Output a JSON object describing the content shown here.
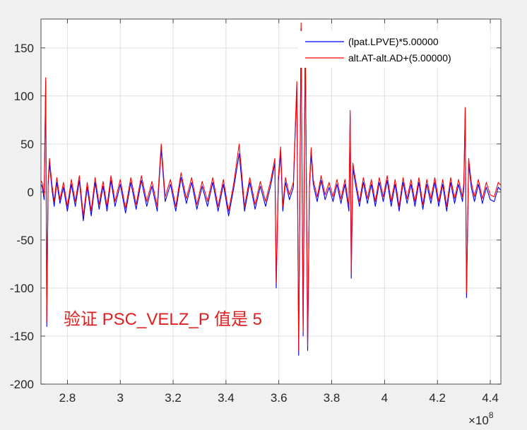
{
  "chart_data": {
    "type": "line",
    "title": "",
    "xlabel": "",
    "ylabel": "",
    "x_exponent_label": "×10",
    "x_exponent_power": "8",
    "xlim": [
      2.7,
      4.44
    ],
    "ylim": [
      -200,
      180
    ],
    "x_ticks": [
      2.8,
      3,
      3.2,
      3.4,
      3.6,
      3.8,
      4,
      4.2,
      4.4
    ],
    "x_tick_labels": [
      "2.8",
      "3",
      "3.2",
      "3.4",
      "3.6",
      "3.8",
      "4",
      "4.2",
      "4.4"
    ],
    "y_ticks": [
      150,
      100,
      50,
      0,
      -50,
      -100,
      -150,
      -200
    ],
    "y_tick_labels": [
      "150",
      "100",
      "50",
      "0",
      "-50",
      "-100",
      "-150",
      "-200"
    ],
    "grid": true,
    "legend_position": "top-right",
    "series": [
      {
        "name": "(lpat.LPVE)*5.00000",
        "color": "#0000ff",
        "x": [
          2.7,
          2.705,
          2.712,
          2.718,
          2.722,
          2.727,
          2.732,
          2.742,
          2.75,
          2.76,
          2.772,
          2.785,
          2.8,
          2.815,
          2.83,
          2.845,
          2.86,
          2.875,
          2.89,
          2.905,
          2.92,
          2.935,
          2.95,
          2.965,
          2.98,
          3.0,
          3.02,
          3.04,
          3.06,
          3.08,
          3.1,
          3.12,
          3.14,
          3.155,
          3.17,
          3.19,
          3.21,
          3.23,
          3.25,
          3.27,
          3.29,
          3.31,
          3.33,
          3.35,
          3.37,
          3.39,
          3.41,
          3.43,
          3.45,
          3.47,
          3.49,
          3.51,
          3.53,
          3.55,
          3.57,
          3.585,
          3.59,
          3.598,
          3.607,
          3.615,
          3.625,
          3.64,
          3.655,
          3.668,
          3.675,
          3.684,
          3.692,
          3.7,
          3.709,
          3.716,
          3.722,
          3.73,
          3.745,
          3.76,
          3.775,
          3.79,
          3.805,
          3.82,
          3.835,
          3.85,
          3.865,
          3.87,
          3.874,
          3.88,
          3.89,
          3.905,
          3.92,
          3.935,
          3.95,
          3.965,
          3.98,
          3.995,
          4.01,
          4.025,
          4.04,
          4.055,
          4.07,
          4.085,
          4.1,
          4.115,
          4.13,
          4.145,
          4.16,
          4.175,
          4.19,
          4.205,
          4.22,
          4.235,
          4.25,
          4.265,
          4.28,
          4.295,
          4.3,
          4.305,
          4.31,
          4.318,
          4.328,
          4.34,
          4.355,
          4.37,
          4.385,
          4.4,
          4.415,
          4.43,
          4.44
        ],
        "values": [
          8,
          5,
          -8,
          115,
          -140,
          6,
          30,
          2,
          -15,
          10,
          -12,
          5,
          -20,
          8,
          -15,
          12,
          -30,
          5,
          -25,
          10,
          -18,
          6,
          -20,
          12,
          -15,
          8,
          -22,
          10,
          -18,
          12,
          -15,
          6,
          -20,
          45,
          -10,
          8,
          -20,
          15,
          -12,
          10,
          -18,
          6,
          -15,
          10,
          -20,
          8,
          -25,
          5,
          40,
          -20,
          10,
          -18,
          6,
          -15,
          8,
          30,
          -100,
          10,
          40,
          -20,
          10,
          -8,
          5,
          110,
          -170,
          170,
          -150,
          160,
          -165,
          5,
          40,
          8,
          -10,
          12,
          -8,
          5,
          -10,
          8,
          -12,
          8,
          -20,
          80,
          -90,
          25,
          8,
          -15,
          10,
          -12,
          8,
          -15,
          10,
          -10,
          12,
          -15,
          8,
          -20,
          10,
          -12,
          8,
          -15,
          10,
          -18,
          8,
          -12,
          10,
          -15,
          8,
          -20,
          10,
          -12,
          8,
          -10,
          5,
          85,
          -110,
          30,
          5,
          -10,
          8,
          -12,
          5,
          -8,
          -10,
          5,
          2
        ]
      },
      {
        "name": "alt.AT-alt.AD+(5.00000)",
        "color": "#ff0000",
        "x": [
          2.7,
          2.705,
          2.712,
          2.718,
          2.722,
          2.727,
          2.732,
          2.742,
          2.75,
          2.76,
          2.772,
          2.785,
          2.8,
          2.815,
          2.83,
          2.845,
          2.86,
          2.875,
          2.89,
          2.905,
          2.92,
          2.935,
          2.95,
          2.965,
          2.98,
          3.0,
          3.02,
          3.04,
          3.06,
          3.08,
          3.1,
          3.12,
          3.14,
          3.155,
          3.17,
          3.19,
          3.21,
          3.23,
          3.25,
          3.27,
          3.29,
          3.31,
          3.33,
          3.35,
          3.37,
          3.39,
          3.41,
          3.43,
          3.45,
          3.47,
          3.49,
          3.51,
          3.53,
          3.55,
          3.57,
          3.585,
          3.59,
          3.598,
          3.607,
          3.615,
          3.625,
          3.64,
          3.655,
          3.668,
          3.675,
          3.684,
          3.692,
          3.7,
          3.709,
          3.716,
          3.722,
          3.73,
          3.745,
          3.76,
          3.775,
          3.79,
          3.805,
          3.82,
          3.835,
          3.85,
          3.865,
          3.87,
          3.874,
          3.88,
          3.89,
          3.905,
          3.92,
          3.935,
          3.95,
          3.965,
          3.98,
          3.995,
          4.01,
          4.025,
          4.04,
          4.055,
          4.07,
          4.085,
          4.1,
          4.115,
          4.13,
          4.145,
          4.16,
          4.175,
          4.19,
          4.205,
          4.22,
          4.235,
          4.25,
          4.265,
          4.28,
          4.295,
          4.3,
          4.305,
          4.31,
          4.318,
          4.328,
          4.34,
          4.355,
          4.37,
          4.385,
          4.4,
          4.415,
          4.43,
          4.44
        ],
        "values": [
          12,
          9,
          -3,
          119,
          -135,
          10,
          35,
          7,
          -10,
          15,
          -8,
          10,
          -15,
          13,
          -10,
          17,
          -25,
          10,
          -20,
          15,
          -13,
          11,
          -15,
          17,
          -10,
          13,
          -17,
          15,
          -13,
          17,
          -10,
          11,
          -15,
          50,
          -5,
          13,
          -15,
          20,
          -7,
          15,
          -13,
          11,
          -10,
          15,
          -15,
          13,
          -20,
          10,
          50,
          -15,
          15,
          -13,
          11,
          -10,
          13,
          35,
          -95,
          15,
          47,
          -15,
          15,
          -3,
          10,
          115,
          -165,
          176,
          -145,
          166,
          -160,
          10,
          46,
          13,
          -5,
          17,
          -3,
          10,
          -5,
          13,
          -7,
          13,
          -15,
          85,
          -85,
          30,
          13,
          -10,
          15,
          -7,
          13,
          -10,
          15,
          -5,
          17,
          -10,
          13,
          -15,
          15,
          -7,
          13,
          -10,
          15,
          -13,
          13,
          -7,
          15,
          -10,
          13,
          -15,
          15,
          -7,
          13,
          -5,
          10,
          88,
          -105,
          35,
          10,
          -5,
          13,
          -7,
          10,
          -3,
          -5,
          10,
          7
        ]
      }
    ]
  },
  "annotation": "验证 PSC_VELZ_P 值是 5"
}
